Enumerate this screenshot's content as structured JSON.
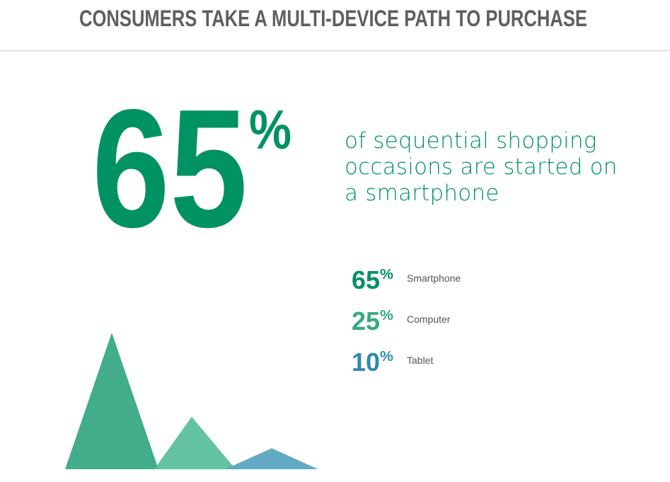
{
  "chart_data": {
    "type": "triangle",
    "title": "CONSUMERS TAKE A MULTI-DEVICE PATH TO PURCHASE",
    "headline": {
      "value": 65,
      "unit": "%",
      "text": "of sequential shopping occasions are started on a smartphone",
      "color": "#009262"
    },
    "categories": [
      "Smartphone",
      "Computer",
      "Tablet"
    ],
    "values": [
      65,
      25,
      10
    ],
    "value_units": [
      "%",
      "%",
      "%"
    ],
    "colors": [
      "#009262",
      "#36a97f",
      "#2f8aaf"
    ],
    "mark_colors": [
      "#38a885",
      "#5bbf9c",
      "#5aa5c0"
    ]
  }
}
